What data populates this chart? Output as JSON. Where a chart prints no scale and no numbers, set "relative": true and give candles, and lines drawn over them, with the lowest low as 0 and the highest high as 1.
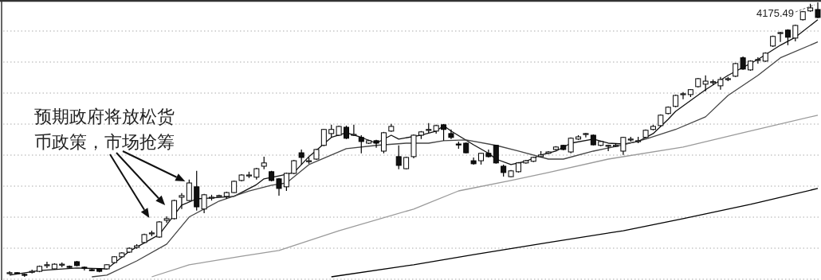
{
  "chart_data": {
    "type": "candlestick",
    "relative": true,
    "grid": "y",
    "categories": [
      null,
      null,
      null,
      null,
      null,
      null,
      null,
      null,
      null,
      null,
      null,
      null,
      null,
      null,
      null,
      null,
      null,
      null,
      null,
      null,
      null,
      null,
      null,
      null,
      null,
      null,
      null,
      null,
      null,
      null,
      null,
      null,
      null,
      null,
      null,
      null,
      null,
      null,
      null,
      null,
      null,
      null,
      null,
      null,
      null,
      null,
      null,
      null,
      null,
      null,
      null,
      null,
      null,
      null,
      null,
      null,
      null,
      null,
      null,
      null,
      null,
      null,
      null,
      null,
      null,
      null,
      null,
      null,
      null,
      null,
      null,
      null,
      null,
      null,
      null,
      null,
      null,
      null,
      null,
      null,
      null,
      null,
      null,
      null,
      null,
      null,
      null,
      null,
      null,
      null,
      null,
      null,
      null,
      null,
      null,
      null,
      null,
      null,
      null,
      null,
      null,
      null,
      null,
      null,
      null,
      null,
      null,
      null,
      null
    ],
    "ohlc": [
      [
        0.014,
        0.02,
        0.009,
        0.015
      ],
      [
        0.015,
        0.017,
        0.012,
        0.013
      ],
      [
        0.009,
        0.012,
        0,
        0.006
      ],
      [
        0.017,
        0.026,
        0.012,
        0.02
      ],
      [
        0.02,
        0.041,
        0.017,
        0.038
      ],
      [
        0.041,
        0.055,
        0.032,
        0.044
      ],
      [
        0.029,
        0.049,
        0.026,
        0.046
      ],
      [
        0.044,
        0.052,
        0.035,
        0.046
      ],
      [
        0.038,
        0.041,
        0.032,
        0.035
      ],
      [
        0.055,
        0.058,
        0.038,
        0.041
      ],
      [
        0.035,
        0.038,
        0.023,
        0.032
      ],
      [
        0.026,
        0.029,
        0.02,
        0.023
      ],
      [
        0.029,
        0.032,
        0.017,
        0.02
      ],
      [
        0.029,
        0.046,
        0.026,
        0.044
      ],
      [
        0.052,
        0.075,
        0.049,
        0.073
      ],
      [
        0.073,
        0.09,
        0.07,
        0.087
      ],
      [
        0.09,
        0.107,
        0.087,
        0.104
      ],
      [
        0.107,
        0.119,
        0.102,
        0.113
      ],
      [
        0.125,
        0.157,
        0.122,
        0.154
      ],
      [
        0.157,
        0.168,
        0.148,
        0.16
      ],
      [
        0.145,
        0.203,
        0.142,
        0.2
      ],
      [
        0.206,
        0.22,
        0.197,
        0.212
      ],
      [
        0.212,
        0.281,
        0.209,
        0.278
      ],
      [
        0.29,
        0.305,
        0.247,
        0.296
      ],
      [
        0.278,
        0.354,
        0.276,
        0.342
      ],
      [
        0.328,
        0.386,
        0.241,
        0.255
      ],
      [
        0.247,
        0.302,
        0.232,
        0.299
      ],
      [
        0.287,
        0.299,
        0.278,
        0.29
      ],
      [
        0.294,
        0.299,
        0.293,
        0.296
      ],
      [
        0.293,
        0.31,
        0.284,
        0.307
      ],
      [
        0.307,
        0.351,
        0.305,
        0.348
      ],
      [
        0.351,
        0.374,
        0.348,
        0.371
      ],
      [
        0.368,
        0.383,
        0.36,
        0.371
      ],
      [
        0.363,
        0.397,
        0.354,
        0.394
      ],
      [
        0.403,
        0.438,
        0.392,
        0.415
      ],
      [
        0.383,
        0.386,
        0.348,
        0.351
      ],
      [
        0.357,
        0.36,
        0.296,
        0.322
      ],
      [
        0.328,
        0.38,
        0.313,
        0.377
      ],
      [
        0.377,
        0.426,
        0.374,
        0.423
      ],
      [
        0.452,
        0.464,
        0.409,
        0.435
      ],
      [
        0.421,
        0.435,
        0.412,
        0.423
      ],
      [
        0.429,
        0.467,
        0.426,
        0.464
      ],
      [
        0.479,
        0.539,
        0.476,
        0.537
      ],
      [
        0.522,
        0.554,
        0.508,
        0.537
      ],
      [
        0.516,
        0.551,
        0.513,
        0.548
      ],
      [
        0.545,
        0.551,
        0.502,
        0.505
      ],
      [
        0.516,
        0.554,
        0.513,
        0.519
      ],
      [
        0.508,
        0.516,
        0.45,
        0.493
      ],
      [
        0.487,
        0.499,
        0.484,
        0.496
      ],
      [
        0.496,
        0.499,
        0.47,
        0.487
      ],
      [
        0.458,
        0.528,
        0.45,
        0.525
      ],
      [
        0.531,
        0.557,
        0.528,
        0.548
      ],
      [
        0.438,
        0.479,
        0.392,
        0.406
      ],
      [
        0.394,
        0.438,
        0.392,
        0.435
      ],
      [
        0.438,
        0.519,
        0.432,
        0.516
      ],
      [
        0.516,
        0.531,
        0.502,
        0.528
      ],
      [
        0.534,
        0.56,
        0.525,
        0.537
      ],
      [
        0.531,
        0.554,
        0.522,
        0.551
      ],
      [
        0.554,
        0.557,
        0.496,
        0.537
      ],
      [
        0.522,
        0.537,
        0.502,
        0.508
      ],
      [
        0.484,
        0.493,
        0.467,
        0.481
      ],
      [
        0.487,
        0.49,
        0.45,
        0.452
      ],
      [
        0.423,
        0.435,
        0.409,
        0.412
      ],
      [
        0.423,
        0.452,
        0.409,
        0.45
      ],
      [
        0.45,
        0.464,
        0.435,
        0.438
      ],
      [
        0.479,
        0.481,
        0.412,
        0.415
      ],
      [
        0.403,
        0.409,
        0.365,
        0.38
      ],
      [
        0.365,
        0.389,
        0.363,
        0.386
      ],
      [
        0.383,
        0.418,
        0.38,
        0.415
      ],
      [
        0.415,
        0.426,
        0.412,
        0.423
      ],
      [
        0.421,
        0.438,
        0.418,
        0.435
      ],
      [
        0.438,
        0.458,
        0.435,
        0.444
      ],
      [
        0.45,
        0.458,
        0.447,
        0.455
      ],
      [
        0.464,
        0.476,
        0.461,
        0.473
      ],
      [
        0.479,
        0.481,
        0.461,
        0.464
      ],
      [
        0.455,
        0.508,
        0.45,
        0.505
      ],
      [
        0.502,
        0.516,
        0.499,
        0.51
      ],
      [
        0.519,
        0.525,
        0.508,
        0.522
      ],
      [
        0.516,
        0.519,
        0.479,
        0.481
      ],
      [
        0.479,
        0.496,
        0.476,
        0.493
      ],
      [
        0.476,
        0.481,
        0.458,
        0.479
      ],
      [
        0.477,
        0.487,
        0.473,
        0.479
      ],
      [
        0.458,
        0.51,
        0.444,
        0.508
      ],
      [
        0.499,
        0.51,
        0.493,
        0.502
      ],
      [
        0.494,
        0.51,
        0.487,
        0.496
      ],
      [
        0.508,
        0.537,
        0.505,
        0.534
      ],
      [
        0.537,
        0.554,
        0.534,
        0.548
      ],
      [
        0.551,
        0.592,
        0.548,
        0.589
      ],
      [
        0.595,
        0.621,
        0.592,
        0.618
      ],
      [
        0.621,
        0.664,
        0.618,
        0.661
      ],
      [
        0.664,
        0.673,
        0.647,
        0.667
      ],
      [
        0.664,
        0.684,
        0.655,
        0.682
      ],
      [
        0.693,
        0.725,
        0.69,
        0.722
      ],
      [
        0.702,
        0.734,
        0.676,
        0.713
      ],
      [
        0.708,
        0.719,
        0.699,
        0.711
      ],
      [
        0.696,
        0.728,
        0.682,
        0.719
      ],
      [
        0.719,
        0.728,
        0.713,
        0.722
      ],
      [
        0.731,
        0.78,
        0.728,
        0.777
      ],
      [
        0.798,
        0.803,
        0.754,
        0.757
      ],
      [
        0.754,
        0.789,
        0.751,
        0.786
      ],
      [
        0.789,
        0.8,
        0.777,
        0.792
      ],
      [
        0.786,
        0.818,
        0.783,
        0.815
      ],
      [
        0.841,
        0.879,
        0.838,
        0.876
      ],
      [
        0.887,
        0.893,
        0.856,
        0.89
      ],
      [
        0.899,
        0.902,
        0.844,
        0.873
      ],
      [
        0.87,
        0.919,
        0.858,
        0.916
      ],
      [
        0.937,
        0.969,
        0.934,
        0.966
      ],
      [
        0.969,
        0.995,
        0.966,
        0.98
      ],
      [
        0.974,
        1,
        0.943,
        0.945
      ]
    ],
    "series": [
      {
        "type": "line",
        "color": "#111111",
        "values": [
          0.006,
          null,
          null,
          null,
          0.023,
          null,
          null,
          null,
          null,
          0.032,
          null,
          null,
          null,
          0.029,
          null,
          null,
          0.093,
          null,
          null,
          null,
          0.154,
          null,
          null,
          0.261,
          null,
          0.284,
          null,
          null,
          null,
          null,
          0.293,
          null,
          null,
          0.336,
          0.357,
          null,
          0.368,
          null,
          0.38,
          null,
          0.438,
          null,
          null,
          0.508,
          null,
          0.525,
          null,
          0.508,
          null,
          0.487,
          null,
          0.516,
          0.502,
          null,
          null,
          0.516,
          null,
          0.531,
          0.551,
          0.531,
          null,
          null,
          0.481,
          null,
          0.45,
          0.429,
          null,
          0.409,
          null,
          0.421,
          null,
          0.444,
          null,
          0.458,
          null,
          0.487,
          null,
          null,
          0.502,
          null,
          0.487,
          null,
          0.484,
          null,
          0.493,
          null,
          0.522,
          null,
          0.574,
          0.603,
          null,
          null,
          null,
          0.682,
          null,
          null,
          0.734,
          null,
          null,
          null,
          0.792,
          null,
          null,
          0.844,
          null,
          0.873,
          null,
          null,
          0.937
        ]
      },
      {
        "type": "line",
        "color": "#444444",
        "values": [
          null,
          null,
          null,
          null,
          null,
          null,
          null,
          null,
          null,
          null,
          null,
          0,
          null,
          0.006,
          null,
          null,
          null,
          0.058,
          null,
          null,
          null,
          0.119,
          null,
          null,
          0.218,
          null,
          null,
          null,
          0.276,
          null,
          null,
          null,
          0.313,
          null,
          null,
          0.334,
          null,
          0.342,
          null,
          null,
          0.409,
          null,
          null,
          null,
          null,
          0.467,
          null,
          null,
          null,
          0.479,
          null,
          null,
          null,
          0.487,
          null,
          null,
          0.487,
          null,
          0.496,
          null,
          null,
          0.499,
          null,
          null,
          null,
          0.479,
          null,
          null,
          0.458,
          null,
          null,
          null,
          0.429,
          null,
          0.429,
          null,
          null,
          null,
          0.458,
          null,
          null,
          null,
          0.481,
          null,
          null,
          0.502,
          null,
          null,
          null,
          0.537,
          null,
          null,
          null,
          0.583,
          null,
          null,
          0.661,
          null,
          null,
          null,
          0.734,
          null,
          null,
          0.798,
          null,
          null,
          null,
          null,
          0.856
        ]
      },
      {
        "type": "line",
        "color": "#9a9a9a",
        "values": [
          null,
          null,
          null,
          null,
          null,
          null,
          null,
          null,
          null,
          null,
          null,
          null,
          null,
          null,
          null,
          null,
          null,
          null,
          null,
          0,
          null,
          null,
          null,
          null,
          0.044,
          null,
          null,
          null,
          null,
          null,
          null,
          0.075,
          null,
          null,
          null,
          null,
          0.096,
          null,
          null,
          null,
          null,
          null,
          null,
          null,
          0.168,
          null,
          null,
          null,
          null,
          null,
          null,
          null,
          null,
          null,
          0.247,
          null,
          null,
          null,
          null,
          null,
          0.313,
          null,
          null,
          null,
          null,
          null,
          null,
          0.351,
          null,
          null,
          null,
          null,
          0.38,
          null,
          null,
          null,
          null,
          null,
          null,
          null,
          0.429,
          null,
          null,
          null,
          null,
          null,
          null,
          null,
          null,
          null,
          0.473,
          null,
          null,
          null,
          null,
          null,
          null,
          null,
          0.525,
          null,
          null,
          null,
          null,
          null,
          null,
          null,
          null,
          null,
          0.589
        ]
      },
      {
        "type": "line",
        "color": "#000000",
        "values": [
          null,
          null,
          null,
          null,
          null,
          null,
          null,
          null,
          null,
          null,
          null,
          null,
          null,
          null,
          null,
          null,
          null,
          null,
          null,
          null,
          null,
          null,
          null,
          null,
          null,
          null,
          null,
          null,
          null,
          null,
          null,
          null,
          null,
          null,
          null,
          null,
          null,
          null,
          null,
          null,
          null,
          null,
          null,
          0,
          null,
          null,
          null,
          null,
          null,
          null,
          null,
          null,
          null,
          null,
          0.044,
          null,
          null,
          null,
          null,
          null,
          null,
          null,
          0.081,
          null,
          null,
          null,
          null,
          null,
          null,
          null,
          null,
          null,
          0.125,
          null,
          null,
          null,
          null,
          null,
          null,
          null,
          null,
          null,
          0.168,
          null,
          null,
          null,
          null,
          null,
          null,
          null,
          0.212,
          null,
          null,
          null,
          null,
          null,
          null,
          null,
          null,
          0.264,
          null,
          null,
          null,
          null,
          null,
          null,
          null,
          null,
          0.322
        ]
      }
    ],
    "annotations": [
      "预期政府将放松货币政策，市场抢筹",
      "4175.49"
    ]
  }
}
